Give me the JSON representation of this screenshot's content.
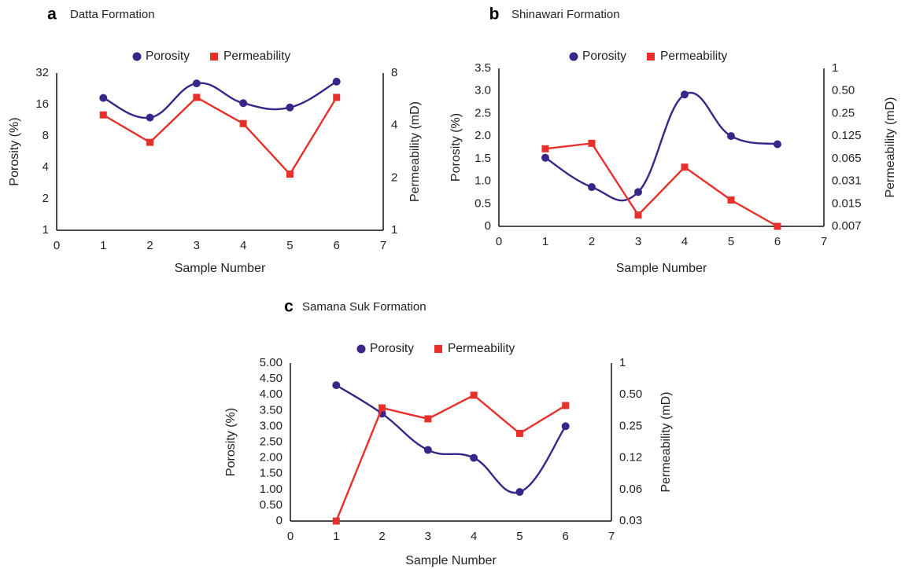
{
  "colors": {
    "porosity": "#3a2589",
    "permeability": "#e8302a",
    "axis": "#111111"
  },
  "chart_data": [
    {
      "panel": "a",
      "title": "Datta Formation",
      "type": "line",
      "xlabel": "Sample Number",
      "ylabel_left": "Porosity (%)",
      "ylabel_right": "Permeability (mD)",
      "xlim": [
        0,
        7
      ],
      "x_ticks": [
        "0",
        "1",
        "2",
        "3",
        "4",
        "5",
        "6",
        "7"
      ],
      "y_left_scale": "log2",
      "y_left_lim": [
        1,
        32
      ],
      "y_left_ticks": [
        "1",
        "2",
        "4",
        "8",
        "16",
        "32"
      ],
      "y_right_scale": "log2",
      "y_right_lim": [
        1,
        8
      ],
      "y_right_ticks": [
        "1",
        "2",
        "4",
        "8"
      ],
      "legend": "top-center",
      "grid": false,
      "series": [
        {
          "name": "Porosity",
          "axis": "left",
          "marker": "circle",
          "smooth": true,
          "x": [
            1,
            2,
            3,
            4,
            5,
            6
          ],
          "y": [
            18.5,
            12.0,
            25.5,
            16.5,
            15.0,
            26.5
          ]
        },
        {
          "name": "Permeability",
          "axis": "right",
          "marker": "square",
          "smooth": false,
          "x": [
            1,
            2,
            3,
            4,
            5,
            6
          ],
          "y": [
            4.6,
            3.2,
            5.8,
            4.1,
            2.1,
            5.8
          ]
        }
      ]
    },
    {
      "panel": "b",
      "title": "Shinawari Formation",
      "type": "line",
      "xlabel": "Sample Number",
      "ylabel_left": "Porosity (%)",
      "ylabel_right": "Permeability (mD)",
      "xlim": [
        0,
        7
      ],
      "x_ticks": [
        "0",
        "1",
        "2",
        "3",
        "4",
        "5",
        "6",
        "7"
      ],
      "y_left_scale": "linear",
      "y_left_lim": [
        0,
        3.5
      ],
      "y_left_ticks": [
        "0",
        "0.5",
        "1.0",
        "1.5",
        "2.0",
        "2.5",
        "3.0",
        "3.5"
      ],
      "y_right_scale": "log2",
      "y_right_lim": [
        0.007,
        1
      ],
      "y_right_ticks": [
        "0.007",
        "0.015",
        "0.031",
        "0.065",
        "0.125",
        "0.25",
        "0.50",
        "1"
      ],
      "legend": "top-center",
      "grid": false,
      "series": [
        {
          "name": "Porosity",
          "axis": "left",
          "marker": "circle",
          "smooth": true,
          "x": [
            1,
            2,
            3,
            4,
            5,
            6
          ],
          "y": [
            1.52,
            0.87,
            0.76,
            2.92,
            2.0,
            1.82
          ]
        },
        {
          "name": "Permeability",
          "axis": "right",
          "marker": "square",
          "smooth": false,
          "x": [
            1,
            2,
            3,
            4,
            5,
            6
          ],
          "y": [
            0.08,
            0.095,
            0.01,
            0.045,
            0.016,
            0.007
          ]
        }
      ]
    },
    {
      "panel": "c",
      "title": "Samana Suk Formation",
      "type": "line",
      "xlabel": "Sample Number",
      "ylabel_left": "Porosity (%)",
      "ylabel_right": "Permeability (mD)",
      "xlim": [
        0,
        7
      ],
      "x_ticks": [
        "0",
        "1",
        "2",
        "3",
        "4",
        "5",
        "6",
        "7"
      ],
      "y_left_scale": "linear",
      "y_left_lim": [
        0,
        5
      ],
      "y_left_ticks": [
        "0",
        "0.50",
        "1.00",
        "1.50",
        "2.00",
        "2.50",
        "3.00",
        "3.50",
        "4.00",
        "4.50",
        "5.00"
      ],
      "y_right_scale": "log2",
      "y_right_lim": [
        0.03,
        1
      ],
      "y_right_ticks": [
        "0.03",
        "0.06",
        "0.12",
        "0.25",
        "0.50",
        "1"
      ],
      "legend": "top-center",
      "grid": false,
      "series": [
        {
          "name": "Porosity",
          "axis": "left",
          "marker": "circle",
          "smooth": true,
          "x": [
            1,
            2,
            3,
            4,
            5,
            6
          ],
          "y": [
            4.3,
            3.4,
            2.25,
            2.0,
            0.92,
            3.0
          ]
        },
        {
          "name": "Permeability",
          "axis": "right",
          "marker": "square",
          "smooth": false,
          "x": [
            1,
            2,
            3,
            4,
            5,
            6
          ],
          "y": [
            0.03,
            0.37,
            0.29,
            0.49,
            0.21,
            0.39
          ]
        }
      ]
    }
  ]
}
